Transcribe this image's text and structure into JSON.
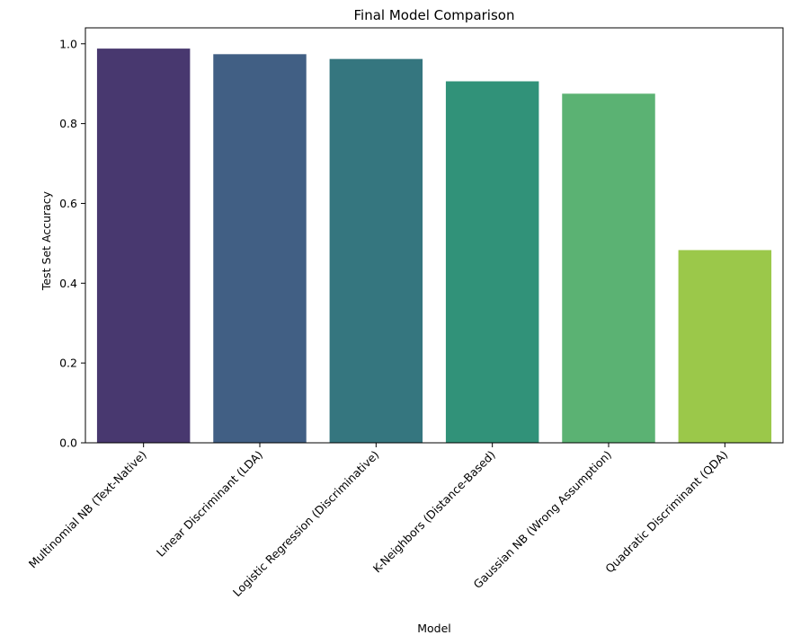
{
  "chart_data": {
    "type": "bar",
    "title": "Final Model Comparison",
    "xlabel": "Model",
    "ylabel": "Test Set Accuracy",
    "ylim": [
      0,
      1.04
    ],
    "yticks": [
      "0.0",
      "0.2",
      "0.4",
      "0.6",
      "0.8",
      "1.0"
    ],
    "grid": false,
    "categories": [
      "Multinomial NB (Text-Native)",
      "Linear Discriminant (LDA)",
      "Logistic Regression (Discriminative)",
      "K-Neighbors (Distance-Based)",
      "Gaussian NB (Wrong Assumption)",
      "Quadratic Discriminant (QDA)"
    ],
    "values": [
      0.988,
      0.974,
      0.962,
      0.906,
      0.875,
      0.483
    ],
    "colors": [
      "#48386f",
      "#415f84",
      "#35767f",
      "#319279",
      "#5bb273",
      "#9bc84a"
    ]
  }
}
